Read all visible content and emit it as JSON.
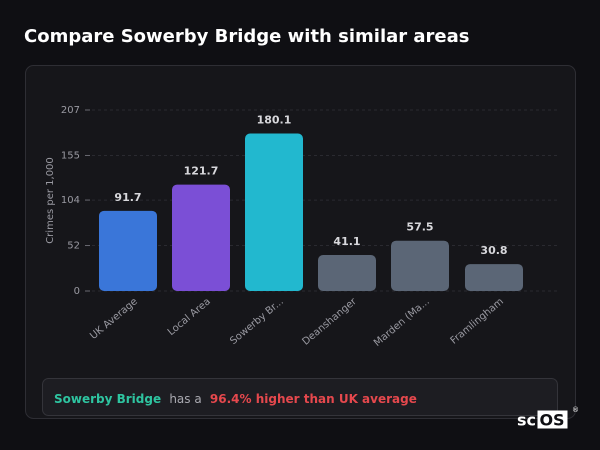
{
  "header": {
    "title": "Compare Sowerby Bridge with similar areas"
  },
  "chart_data": {
    "type": "bar",
    "categories": [
      "UK Average",
      "Local Area",
      "Sowerby Br...",
      "Deanshanger",
      "Marden (Ma...",
      "Framlingham"
    ],
    "values": [
      91.7,
      121.7,
      180.1,
      41.1,
      57.5,
      30.8
    ],
    "colors": [
      "#3a76d9",
      "#7b4fd6",
      "#22b8cf",
      "#5b6676",
      "#5b6676",
      "#5b6676"
    ],
    "ylabel": "Crimes per 1,000",
    "ylim": [
      0,
      207
    ],
    "yticks": [
      0,
      52,
      104,
      155,
      207
    ],
    "grid": true
  },
  "summary": {
    "area": "Sowerby Bridge",
    "middle": "has a",
    "highlight": "96.4% higher than UK average"
  },
  "logo": {
    "prefix": "sc",
    "boxed": "OS",
    "mark": "®"
  }
}
